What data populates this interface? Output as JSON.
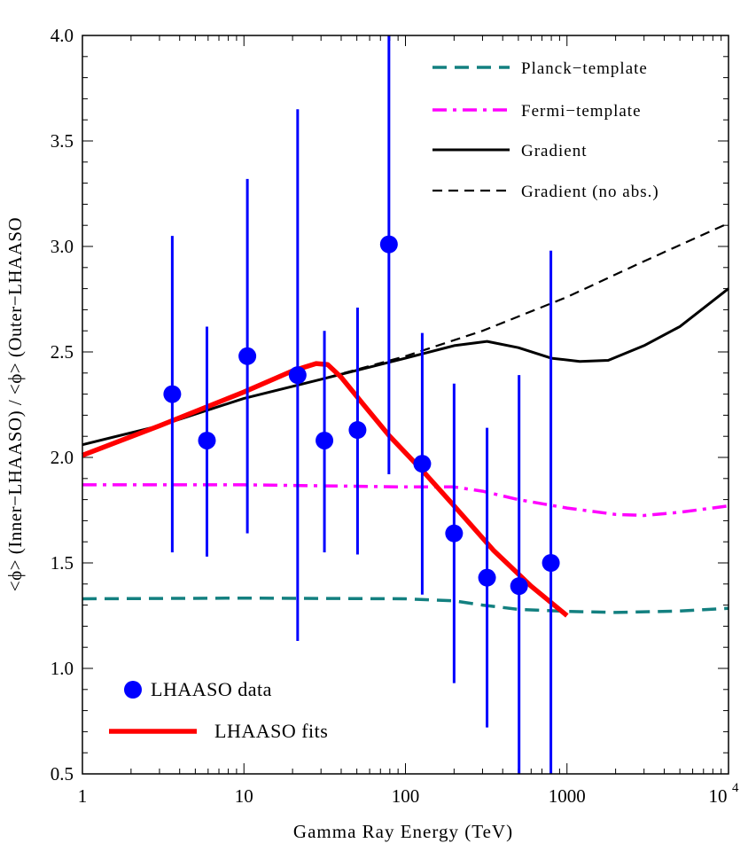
{
  "chart_data": {
    "type": "scatter",
    "title": "",
    "xlabel": "Gamma Ray Energy (TeV)",
    "ylabel": "<ϕ> (Inner−LHAASO) / <ϕ> (Outer−LHAASO",
    "xscale": "log",
    "xlim": [
      1,
      10000
    ],
    "ylim": [
      0.5,
      4.0
    ],
    "x_ticks": [
      {
        "value": 1,
        "label": "1"
      },
      {
        "value": 10,
        "label": "10"
      },
      {
        "value": 100,
        "label": "100"
      },
      {
        "value": 1000,
        "label": "1000"
      }
    ],
    "x_tick_last": {
      "value": 10000,
      "base": "10",
      "exp": "4"
    },
    "y_ticks": [
      {
        "value": 0.5,
        "label": "0.5"
      },
      {
        "value": 1.0,
        "label": "1.0"
      },
      {
        "value": 1.5,
        "label": "1.5"
      },
      {
        "value": 2.0,
        "label": "2.0"
      },
      {
        "value": 2.5,
        "label": "2.5"
      },
      {
        "value": 3.0,
        "label": "3.0"
      },
      {
        "value": 3.5,
        "label": "3.5"
      },
      {
        "value": 4.0,
        "label": "4.0"
      }
    ],
    "series": [
      {
        "name": "Planck−template",
        "style": "dashed",
        "color": "#138080",
        "x": [
          1,
          10,
          100,
          200,
          300,
          500,
          1000,
          2000,
          5000,
          10000
        ],
        "y": [
          1.33,
          1.333,
          1.33,
          1.32,
          1.3,
          1.28,
          1.27,
          1.265,
          1.272,
          1.285
        ]
      },
      {
        "name": "Fermi−template",
        "style": "dashdot",
        "color": "#ff00ff",
        "x": [
          1,
          10,
          100,
          200,
          300,
          500,
          1000,
          2000,
          3000,
          5000,
          10000
        ],
        "y": [
          1.87,
          1.87,
          1.86,
          1.86,
          1.84,
          1.8,
          1.76,
          1.73,
          1.725,
          1.74,
          1.77
        ]
      },
      {
        "name": "Gradient",
        "style": "solid",
        "color": "#000000",
        "x": [
          1,
          3,
          10,
          30,
          100,
          200,
          320,
          500,
          800,
          1200,
          1800,
          3000,
          5000,
          10000
        ],
        "y": [
          2.06,
          2.15,
          2.28,
          2.37,
          2.47,
          2.53,
          2.55,
          2.52,
          2.47,
          2.455,
          2.46,
          2.53,
          2.62,
          2.8
        ]
      },
      {
        "name": "Gradient (no abs.)",
        "style": "dashed",
        "color": "#000000",
        "x": [
          1,
          3,
          10,
          30,
          100,
          300,
          1000,
          3000,
          10000
        ],
        "y": [
          2.06,
          2.15,
          2.28,
          2.37,
          2.48,
          2.6,
          2.76,
          2.93,
          3.11
        ]
      },
      {
        "name": "LHAASO fits",
        "style": "solid-thick",
        "color": "#ff0000",
        "x": [
          1,
          3,
          10,
          20,
          28,
          33,
          40,
          55,
          80,
          130,
          200,
          350,
          600,
          1000
        ],
        "y": [
          2.01,
          2.15,
          2.31,
          2.41,
          2.445,
          2.44,
          2.38,
          2.25,
          2.1,
          1.93,
          1.77,
          1.56,
          1.39,
          1.25
        ]
      }
    ],
    "points": {
      "name": "LHAASO data",
      "color": "#0000ff",
      "x": [
        3.6,
        5.9,
        10.5,
        21.5,
        31.5,
        50.5,
        79,
        127,
        200,
        320,
        505,
        795
      ],
      "y": [
        2.3,
        2.08,
        2.48,
        2.39,
        2.08,
        2.13,
        3.01,
        1.97,
        1.64,
        1.43,
        1.39,
        1.5
      ],
      "yerr_low": [
        1.55,
        1.53,
        1.64,
        1.13,
        1.55,
        1.54,
        1.92,
        1.35,
        0.93,
        0.72,
        0.5,
        0.5
      ],
      "yerr_high": [
        3.05,
        2.62,
        3.32,
        3.65,
        2.6,
        2.71,
        4.0,
        2.59,
        2.35,
        2.14,
        2.39,
        2.98
      ]
    },
    "legend_top": [
      {
        "label": "Planck−template",
        "series": 0
      },
      {
        "label": "Fermi−template",
        "series": 1
      },
      {
        "label": "Gradient",
        "series": 2
      },
      {
        "label": "Gradient (no abs.)",
        "series": 3
      }
    ],
    "legend_bottom": [
      {
        "label": "LHAASO data",
        "kind": "points"
      },
      {
        "label": "LHAASO fits",
        "kind": "line",
        "series": 4
      }
    ],
    "grid": false
  }
}
